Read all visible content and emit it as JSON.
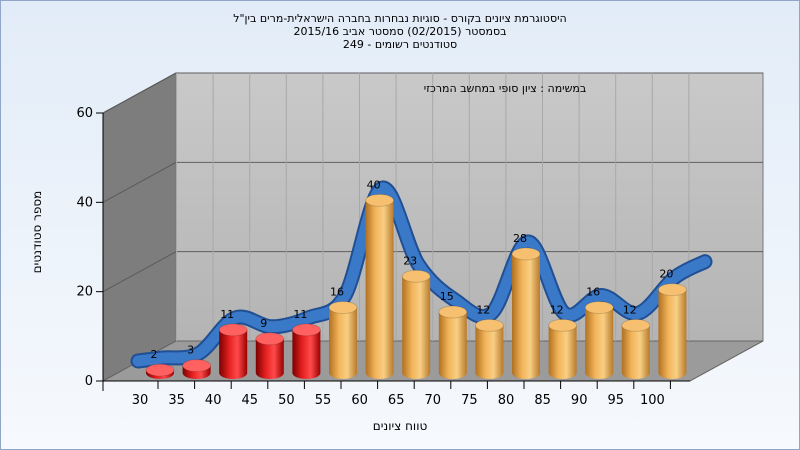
{
  "chart_data": {
    "type": "bar",
    "title": "היסטוגרמת ציונים בקורס - סוגיות נבחרות בחברה הישראלית-מרים בין\"ל",
    "subtitle": "בסמסטר  (02/2015)  סמסטר אביב 2015/16",
    "subtitle2": "סטודנטים רשומים - 249",
    "annotation": "במשימה : ציון סופי במחשב המרכזי",
    "xlabel": "טווח ציונים",
    "ylabel": "מספר סטודנטים",
    "ylim": [
      0,
      60
    ],
    "yticks": [
      0,
      20,
      40,
      60
    ],
    "categories": [
      "30",
      "35",
      "40",
      "45",
      "50",
      "55",
      "60",
      "65",
      "70",
      "75",
      "80",
      "85",
      "90",
      "95",
      "100"
    ],
    "values": [
      2,
      3,
      11,
      9,
      11,
      16,
      40,
      23,
      15,
      12,
      28,
      12,
      16,
      12,
      20
    ],
    "colors": {
      "fail": "#e01b1b",
      "pass": "#e9a84a",
      "trend": "#3a78c8"
    },
    "fail_categories": 5,
    "trend_line": true,
    "grid": true
  }
}
